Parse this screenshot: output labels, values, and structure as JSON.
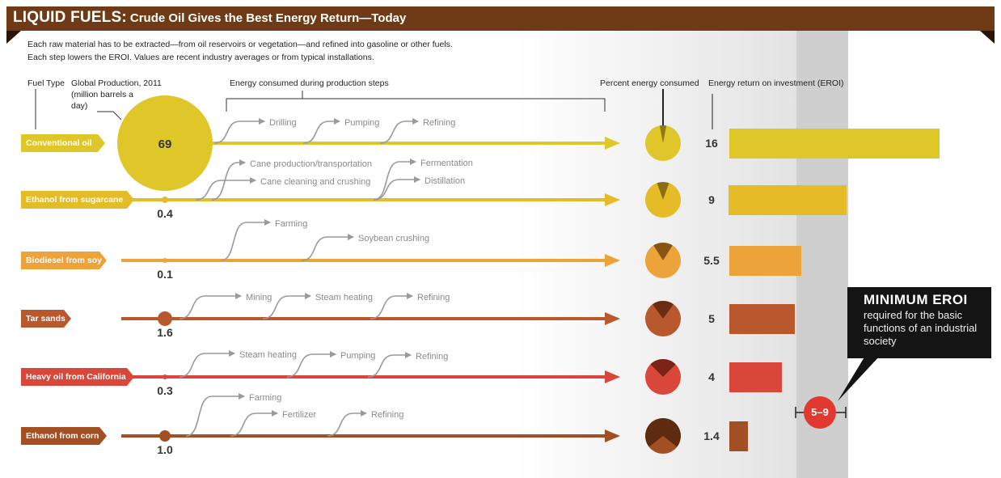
{
  "banner": {
    "title": "LIQUID FUELS:",
    "subtitle": "Crude Oil Gives the Best Energy Return—Today"
  },
  "intro": {
    "line1": "Each raw material has to be extracted—from oil reservoirs or vegetation—and refined into gasoline or other fuels.",
    "line2": "Each step lowers the EROI. Values are recent industry averages or from typical installations."
  },
  "headers": {
    "fuel_type": "Fuel Type",
    "production": "Global Production, 2011",
    "production_unit": "(million barrels a day)",
    "steps": "Energy consumed during production steps",
    "percent": "Percent energy consumed",
    "eroi": "Energy return on investment (EROI)"
  },
  "fuels": [
    {
      "name": "Conventional oil",
      "production": "69",
      "eroi": "16",
      "eroi_value": 16,
      "percent_consumed": 6,
      "color": "#dfc72a",
      "wedge_color": "#8c7a12",
      "steps": [
        "Drilling",
        "Pumping",
        "Refining"
      ]
    },
    {
      "name": "Ethanol from sugarcane",
      "production": "0.4",
      "eroi": "9",
      "eroi_value": 9,
      "percent_consumed": 11,
      "color": "#e5bb27",
      "wedge_color": "#8c6d14",
      "steps": [
        "Cane production/transportation",
        "Cane cleaning and crushing",
        "Fermentation",
        "Distillation"
      ]
    },
    {
      "name": "Biodiesel from soy",
      "production": "0.1",
      "eroi": "5.5",
      "eroi_value": 5.5,
      "percent_consumed": 18,
      "color": "#eba33a",
      "wedge_color": "#8a5316",
      "steps": [
        "Farming",
        "Soybean crushing"
      ]
    },
    {
      "name": "Tar sands",
      "production": "1.6",
      "eroi": "5",
      "eroi_value": 5,
      "percent_consumed": 20,
      "color": "#b9582c",
      "wedge_color": "#6a2c12",
      "steps": [
        "Mining",
        "Steam heating",
        "Refining"
      ]
    },
    {
      "name": "Heavy oil from California",
      "production": "0.3",
      "eroi": "4",
      "eroi_value": 4,
      "percent_consumed": 25,
      "color": "#d8473a",
      "wedge_color": "#7a2418",
      "steps": [
        "Steam heating",
        "Pumping",
        "Refining"
      ]
    },
    {
      "name": "Ethanol from corn",
      "production": "1.0",
      "eroi": "1.4",
      "eroi_value": 1.4,
      "percent_consumed": 71,
      "color": "#a24f24",
      "wedge_color": "#5e2a10",
      "steps": [
        "Farming",
        "Fertilizer",
        "Refining"
      ]
    }
  ],
  "minimum": {
    "title": "MINIMUM EROI",
    "description": "required for the basic functions of an industrial society",
    "range": "5–9"
  },
  "step_arrow_color": "#9a9a9a"
}
